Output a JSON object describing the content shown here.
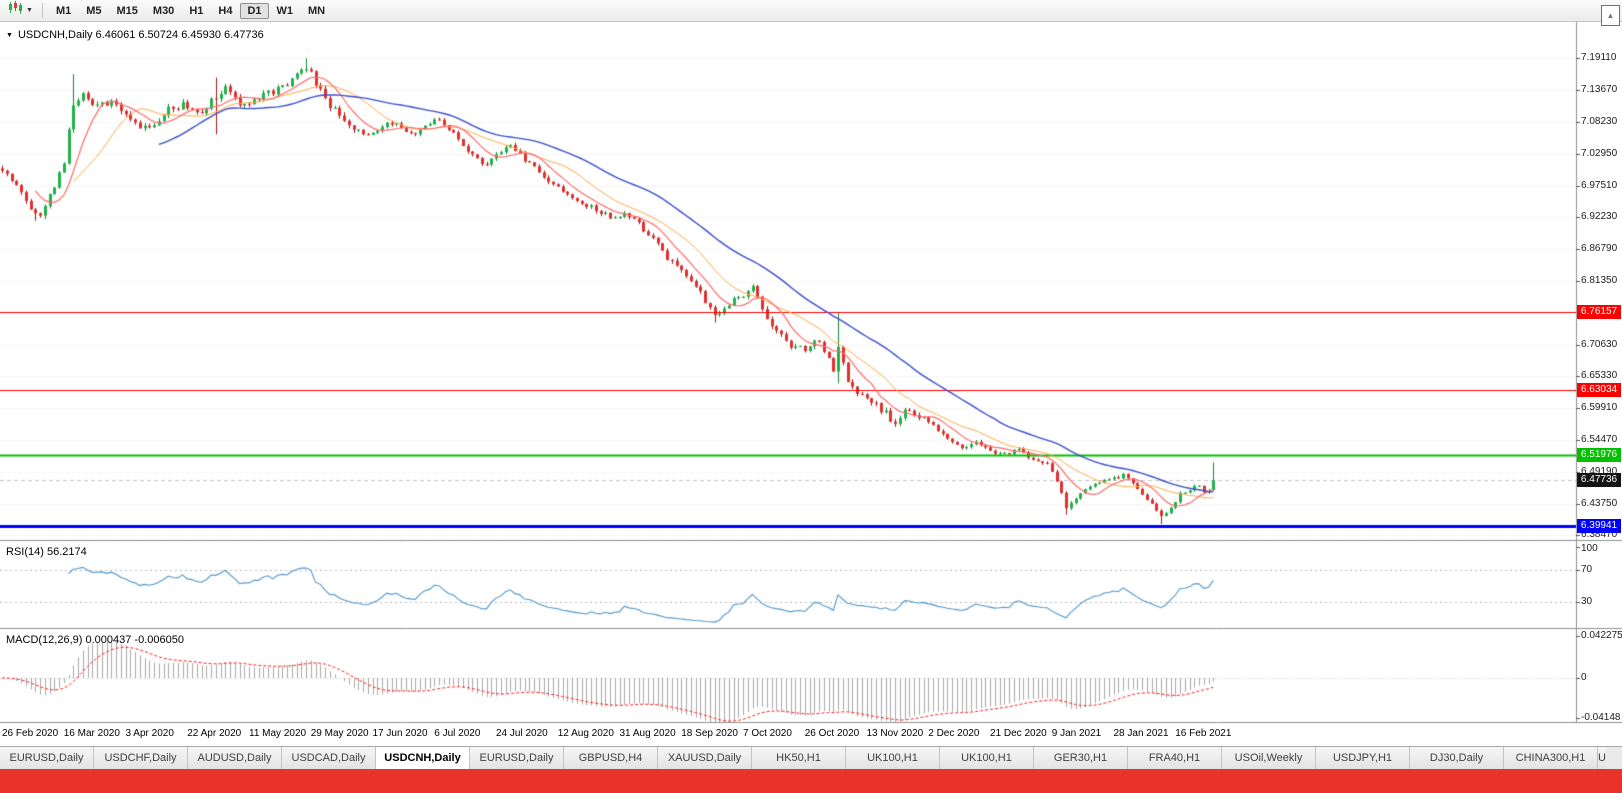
{
  "toolbar": {
    "timeframes": [
      "M1",
      "M5",
      "M15",
      "M30",
      "H1",
      "H4",
      "D1",
      "W1",
      "MN"
    ],
    "active_timeframe": "D1"
  },
  "icons": {
    "dropdown_caret": "▼",
    "header_marker": "▼",
    "scroll_arrow": "▲"
  },
  "chart": {
    "header_text": "USDCNH,Daily 6.46061 6.50724 6.45930 6.47736",
    "axis_ticks": [
      "7.19110",
      "7.13670",
      "7.08230",
      "7.02950",
      "6.97510",
      "6.92230",
      "6.86790",
      "6.81350",
      "6.70630",
      "6.65330",
      "6.59910",
      "6.54470",
      "6.49190",
      "6.43750",
      "6.38470"
    ],
    "levels": [
      {
        "name": "resistance-upper",
        "value": "6.76157",
        "price": 6.76157,
        "color": "#ff0000",
        "width": 1,
        "text_color": "#ffffff"
      },
      {
        "name": "resistance-lower",
        "value": "6.63034",
        "price": 6.63034,
        "color": "#ff0000",
        "width": 1,
        "text_color": "#ffffff"
      },
      {
        "name": "support-green",
        "value": "6.51976",
        "price": 6.51976,
        "color": "#00c000",
        "width": 2,
        "text_color": "#ffffff"
      },
      {
        "name": "support-blue",
        "value": "6.39941",
        "price": 6.39941,
        "color": "#0000ff",
        "width": 3,
        "text_color": "#ffffff"
      }
    ],
    "current_price": {
      "value": "6.47736",
      "price": 6.47736,
      "bg": "#141414",
      "text_color": "#ffffff"
    }
  },
  "rsi": {
    "label": "RSI(14) 56.2174",
    "axis": [
      "100",
      "70",
      "30"
    ],
    "level_lines": [
      70,
      30
    ]
  },
  "macd": {
    "label": "MACD(12,26,9) 0.000437 -0.006050",
    "axis": [
      "0.042275",
      "0",
      "-0.04148"
    ]
  },
  "date_axis": [
    "26 Feb 2020",
    "16 Mar 2020",
    "3 Apr 2020",
    "22 Apr 2020",
    "11 May 2020",
    "29 May 2020",
    "17 Jun 2020",
    "6 Jul 2020",
    "24 Jul 2020",
    "12 Aug 2020",
    "31 Aug 2020",
    "18 Sep 2020",
    "7 Oct 2020",
    "26 Oct 2020",
    "13 Nov 2020",
    "2 Dec 2020",
    "21 Dec 2020",
    "9 Jan 2021",
    "28 Jan 2021",
    "16 Feb 2021"
  ],
  "tabs": {
    "items": [
      "EURUSD,Daily",
      "USDCHF,Daily",
      "AUDUSD,Daily",
      "USDCAD,Daily",
      "USDCNH,Daily",
      "EURUSD,Daily",
      "GBPUSD,H4",
      "XAUUSD,Daily",
      "HK50,H1",
      "UK100,H1",
      "UK100,H1",
      "GER30,H1",
      "FRA40,H1",
      "USOil,Weekly",
      "USDJPY,H1",
      "DJ30,Daily",
      "CHINA300,H1"
    ],
    "active_index": 4,
    "partial_label": "U"
  },
  "colors": {
    "candle_up": "#22b14c",
    "candle_up_border": "#128a3a",
    "candle_down": "#e0312d",
    "candle_down_border": "#a31916",
    "ma_fast": "#ff6b6b",
    "ma_mid": "#ffab47",
    "ma_slow": "#3a4fd0",
    "rsi_line": "#4f97d0",
    "macd_histogram": "#a9a9a9",
    "macd_signal": "#ff2222",
    "grid": "#e8e8e8",
    "panel_border": "#8f8f8f",
    "red_strip": "#e8322a"
  },
  "chart_data": {
    "type": "candlestick",
    "symbol": "USDCNH",
    "timeframe": "Daily",
    "ohlc": {
      "open": "6.46061",
      "high": "6.50724",
      "low": "6.45930",
      "close": "6.47736"
    },
    "bar_count": 256,
    "y_range": [
      6.3762,
      7.252
    ],
    "horizontal_levels": [
      6.76157,
      6.63034,
      6.51976,
      6.39941
    ],
    "moving_averages": [
      {
        "period": 8
      },
      {
        "period": 16
      },
      {
        "period": 34
      }
    ],
    "indicators": {
      "rsi_period": 14,
      "rsi_current": 56.2174,
      "macd_params": [
        12,
        26,
        9
      ],
      "macd_current": 0.000437,
      "macd_signal_current": -0.00605
    },
    "price_path": [
      [
        0,
        7.0
      ],
      [
        3,
        6.975
      ],
      [
        6,
        6.94
      ],
      [
        8,
        6.924
      ],
      [
        10,
        6.958
      ],
      [
        13,
        7.018
      ],
      [
        15,
        7.115
      ],
      [
        17,
        7.128
      ],
      [
        20,
        7.108
      ],
      [
        23,
        7.12
      ],
      [
        26,
        7.096
      ],
      [
        29,
        7.07
      ],
      [
        32,
        7.082
      ],
      [
        35,
        7.105
      ],
      [
        38,
        7.112
      ],
      [
        41,
        7.094
      ],
      [
        44,
        7.12
      ],
      [
        47,
        7.14
      ],
      [
        50,
        7.112
      ],
      [
        53,
        7.12
      ],
      [
        56,
        7.132
      ],
      [
        59,
        7.142
      ],
      [
        62,
        7.165
      ],
      [
        64,
        7.176
      ],
      [
        66,
        7.15
      ],
      [
        68,
        7.12
      ],
      [
        71,
        7.095
      ],
      [
        74,
        7.075
      ],
      [
        77,
        7.06
      ],
      [
        80,
        7.076
      ],
      [
        83,
        7.082
      ],
      [
        86,
        7.06
      ],
      [
        89,
        7.078
      ],
      [
        92,
        7.086
      ],
      [
        95,
        7.062
      ],
      [
        98,
        7.036
      ],
      [
        101,
        7.01
      ],
      [
        104,
        7.026
      ],
      [
        107,
        7.042
      ],
      [
        110,
        7.02
      ],
      [
        113,
        6.996
      ],
      [
        116,
        6.98
      ],
      [
        119,
        6.96
      ],
      [
        122,
        6.946
      ],
      [
        125,
        6.936
      ],
      [
        128,
        6.92
      ],
      [
        131,
        6.926
      ],
      [
        134,
        6.91
      ],
      [
        137,
        6.886
      ],
      [
        140,
        6.85
      ],
      [
        143,
        6.836
      ],
      [
        146,
        6.806
      ],
      [
        148,
        6.78
      ],
      [
        150,
        6.756
      ],
      [
        153,
        6.776
      ],
      [
        156,
        6.79
      ],
      [
        158,
        6.81
      ],
      [
        160,
        6.762
      ],
      [
        163,
        6.732
      ],
      [
        166,
        6.706
      ],
      [
        169,
        6.7
      ],
      [
        172,
        6.716
      ],
      [
        175,
        6.666
      ],
      [
        176,
        6.7
      ],
      [
        178,
        6.642
      ],
      [
        180,
        6.626
      ],
      [
        183,
        6.61
      ],
      [
        186,
        6.59
      ],
      [
        188,
        6.572
      ],
      [
        190,
        6.6
      ],
      [
        193,
        6.586
      ],
      [
        196,
        6.566
      ],
      [
        199,
        6.546
      ],
      [
        202,
        6.53
      ],
      [
        205,
        6.54
      ],
      [
        208,
        6.528
      ],
      [
        211,
        6.52
      ],
      [
        214,
        6.53
      ],
      [
        217,
        6.512
      ],
      [
        220,
        6.506
      ],
      [
        223,
        6.456
      ],
      [
        224,
        6.433
      ],
      [
        227,
        6.455
      ],
      [
        230,
        6.47
      ],
      [
        233,
        6.478
      ],
      [
        236,
        6.486
      ],
      [
        239,
        6.462
      ],
      [
        242,
        6.436
      ],
      [
        244,
        6.416
      ],
      [
        246,
        6.43
      ],
      [
        248,
        6.455
      ],
      [
        250,
        6.463
      ],
      [
        252,
        6.47
      ],
      [
        253,
        6.456
      ],
      [
        254,
        6.461
      ],
      [
        255,
        6.47736
      ]
    ],
    "wick_overrides": [
      {
        "i": 7,
        "low": 6.916
      },
      {
        "i": 15,
        "high": 7.164
      },
      {
        "i": 45,
        "high": 7.158,
        "low": 7.062
      },
      {
        "i": 64,
        "high": 7.191
      },
      {
        "i": 150,
        "low": 6.744
      },
      {
        "i": 176,
        "high": 6.762,
        "low": 6.641
      },
      {
        "i": 224,
        "low": 6.419
      },
      {
        "i": 244,
        "low": 6.403
      }
    ],
    "last_candle": {
      "open": 6.46061,
      "high": 6.50724,
      "low": 6.4593,
      "close": 6.47736
    }
  }
}
